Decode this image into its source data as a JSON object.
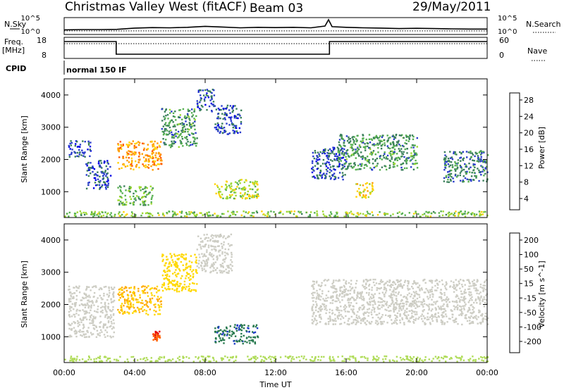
{
  "header": {
    "title": "Christmas Valley West (fitACF)",
    "beam": "Beam 03",
    "date": "29/May/2011"
  },
  "colors": {
    "power_scale": [
      "#0000e6",
      "#2a3ccc",
      "#3a7f5a",
      "#56b050",
      "#9ed832",
      "#ffd200",
      "#ff9c00",
      "#ff5a00",
      "#e60000"
    ],
    "velocity_scale": [
      "#e60000",
      "#ff6400",
      "#ffaa00",
      "#ffd800",
      "#cdcdc4",
      "#b0dc5a",
      "#4fc030",
      "#2a7a50",
      "#1e3cc8"
    ]
  },
  "chart_data": [
    {
      "type": "line",
      "name": "n-sky-n-search",
      "ylabel": "N.Sky",
      "right_label": "N.Search",
      "ytick_labels": [
        "10^5",
        "10^0"
      ],
      "right_tick_labels": [
        "10^5",
        "10^0"
      ],
      "xlim": [
        0,
        24
      ],
      "series": [
        {
          "style": "solid",
          "x": [
            0,
            1,
            2,
            3,
            4,
            5,
            6,
            7,
            8,
            9,
            10,
            11,
            12,
            13,
            14,
            14.8,
            15,
            15.2,
            16,
            17,
            18,
            19,
            20,
            21,
            22,
            23,
            24
          ],
          "level": [
            0.2,
            0.22,
            0.22,
            0.24,
            0.34,
            0.38,
            0.36,
            0.4,
            0.48,
            0.42,
            0.36,
            0.4,
            0.38,
            0.4,
            0.36,
            0.5,
            1.0,
            0.45,
            0.4,
            0.36,
            0.34,
            0.3,
            0.32,
            0.3,
            0.28,
            0.26,
            0.26
          ]
        },
        {
          "style": "dotted",
          "x": [
            0,
            24
          ],
          "level": [
            0.12,
            0.12
          ]
        }
      ]
    },
    {
      "type": "line",
      "name": "freq-nave",
      "ylabel": "Freq.",
      "ylabel2": "[MHz]",
      "right_label": "Nave",
      "ytick_labels": [
        "18",
        "8"
      ],
      "right_tick_labels": [
        "60",
        "0"
      ],
      "xlim": [
        0,
        24
      ],
      "series": [
        {
          "style": "solid",
          "x": [
            0,
            2.95,
            2.95,
            15.05,
            15.05,
            24
          ],
          "mhz": [
            16,
            16,
            10,
            10,
            16,
            16
          ]
        },
        {
          "style": "dotted",
          "x": [
            0,
            24
          ],
          "mhz": [
            15,
            15
          ]
        }
      ]
    },
    {
      "type": "heatmap",
      "name": "power",
      "ylabel": "Slant Range [km]",
      "colorbar_label": "Power [dB]",
      "colorbar_ticks": [
        "28",
        "24",
        "20",
        "16",
        "12",
        "8",
        "4"
      ],
      "yticks": [
        "4000",
        "3000",
        "2000",
        "1000"
      ],
      "ytick_values": [
        4000,
        3000,
        2000,
        1000
      ],
      "ylim": [
        200,
        4500
      ],
      "xlim": [
        0,
        24
      ],
      "regions": [
        {
          "t": [
            3.0,
            5.5
          ],
          "r": [
            1700,
            2600
          ],
          "value": 22
        },
        {
          "t": [
            5.5,
            7.5
          ],
          "r": [
            2400,
            3600
          ],
          "value": 10
        },
        {
          "t": [
            7.5,
            8.5
          ],
          "r": [
            3500,
            4200
          ],
          "value": 6
        },
        {
          "t": [
            8.5,
            10.0
          ],
          "r": [
            2800,
            3700
          ],
          "value": 6
        },
        {
          "t": [
            0.2,
            1.5
          ],
          "r": [
            2100,
            2600
          ],
          "value": 6
        },
        {
          "t": [
            1.2,
            2.6
          ],
          "r": [
            1100,
            2000
          ],
          "value": 6
        },
        {
          "t": [
            3.0,
            5.0
          ],
          "r": [
            600,
            1200
          ],
          "value": 12
        },
        {
          "t": [
            8.5,
            11.0
          ],
          "r": [
            800,
            1400
          ],
          "value": 16
        },
        {
          "t": [
            14.0,
            16.0
          ],
          "r": [
            1400,
            2400
          ],
          "value": 6
        },
        {
          "t": [
            15.5,
            20.0
          ],
          "r": [
            1700,
            2800
          ],
          "value": 10
        },
        {
          "t": [
            16.5,
            17.5
          ],
          "r": [
            800,
            1300
          ],
          "value": 18
        },
        {
          "t": [
            21.5,
            24.0
          ],
          "r": [
            1300,
            2300
          ],
          "value": 8
        },
        {
          "t": [
            0.0,
            24.0
          ],
          "r": [
            250,
            420
          ],
          "value": 14
        }
      ]
    },
    {
      "type": "heatmap",
      "name": "velocity",
      "ylabel": "Slant Range [km]",
      "colorbar_label": "Velocity [m s^-1]",
      "colorbar_ticks": [
        "200",
        "100",
        "50",
        "15",
        "-15",
        "-50",
        "-100",
        "-200"
      ],
      "yticks": [
        "4000",
        "3000",
        "2000",
        "1000"
      ],
      "ytick_values": [
        4000,
        3000,
        2000,
        1000
      ],
      "ylim": [
        200,
        4500
      ],
      "xlim": [
        0,
        24
      ],
      "regions": [
        {
          "t": [
            3.0,
            5.5
          ],
          "r": [
            1700,
            2600
          ],
          "value": -50
        },
        {
          "t": [
            5.5,
            7.5
          ],
          "r": [
            2400,
            3600
          ],
          "value": -40
        },
        {
          "t": [
            7.5,
            9.5
          ],
          "r": [
            3000,
            4200
          ],
          "value": 0
        },
        {
          "t": [
            0.2,
            2.8
          ],
          "r": [
            1000,
            2600
          ],
          "value": 0
        },
        {
          "t": [
            5.0,
            5.4
          ],
          "r": [
            900,
            1200
          ],
          "value": -200
        },
        {
          "t": [
            8.5,
            11.0
          ],
          "r": [
            800,
            1400
          ],
          "value": 180
        },
        {
          "t": [
            14.0,
            24.0
          ],
          "r": [
            1400,
            2800
          ],
          "value": 0
        },
        {
          "t": [
            0.0,
            24.0
          ],
          "r": [
            250,
            420
          ],
          "value": 40
        }
      ]
    }
  ],
  "x_axis": {
    "label": "Time UT",
    "tick_labels": [
      "00:00",
      "04:00",
      "08:00",
      "12:00",
      "16:00",
      "20:00",
      "00:00"
    ],
    "tick_hours": [
      0,
      4,
      8,
      12,
      16,
      20,
      24
    ]
  },
  "cpid": {
    "label": "CPID",
    "mode": "normal 150 IF"
  }
}
